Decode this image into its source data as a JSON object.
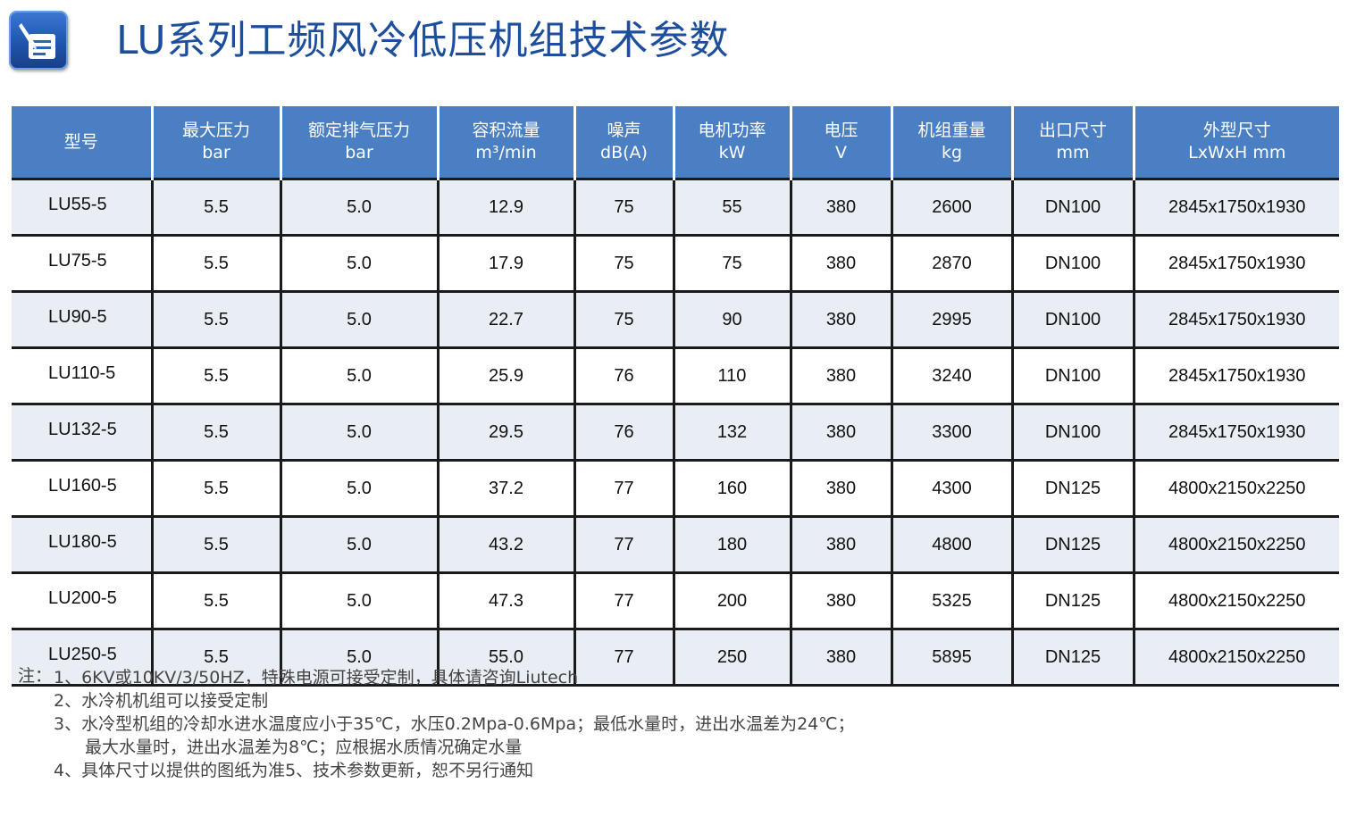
{
  "header": {
    "title": "LU系列工频风冷低压机组技术参数",
    "logo_icon": "document-pen-icon"
  },
  "table": {
    "columns": [
      {
        "name": "型号",
        "unit": ""
      },
      {
        "name": "最大压力",
        "unit": "bar"
      },
      {
        "name": "额定排气压力",
        "unit": "bar"
      },
      {
        "name": "容积流量",
        "unit": "m³/min"
      },
      {
        "name": "噪声",
        "unit": "dB(A)"
      },
      {
        "name": "电机功率",
        "unit": "kW"
      },
      {
        "name": "电压",
        "unit": "V"
      },
      {
        "name": "机组重量",
        "unit": "kg"
      },
      {
        "name": "出口尺寸",
        "unit": "mm"
      },
      {
        "name": "外型尺寸",
        "unit": "LxWxH mm"
      }
    ],
    "rows": [
      [
        "LU55-5",
        "5.5",
        "5.0",
        "12.9",
        "75",
        "55",
        "380",
        "2600",
        "DN100",
        "2845x1750x1930"
      ],
      [
        "LU75-5",
        "5.5",
        "5.0",
        "17.9",
        "75",
        "75",
        "380",
        "2870",
        "DN100",
        "2845x1750x1930"
      ],
      [
        "LU90-5",
        "5.5",
        "5.0",
        "22.7",
        "75",
        "90",
        "380",
        "2995",
        "DN100",
        "2845x1750x1930"
      ],
      [
        "LU110-5",
        "5.5",
        "5.0",
        "25.9",
        "76",
        "110",
        "380",
        "3240",
        "DN100",
        "2845x1750x1930"
      ],
      [
        "LU132-5",
        "5.5",
        "5.0",
        "29.5",
        "76",
        "132",
        "380",
        "3300",
        "DN100",
        "2845x1750x1930"
      ],
      [
        "LU160-5",
        "5.5",
        "5.0",
        "37.2",
        "77",
        "160",
        "380",
        "4300",
        "DN125",
        "4800x2150x2250"
      ],
      [
        "LU180-5",
        "5.5",
        "5.0",
        "43.2",
        "77",
        "180",
        "380",
        "4800",
        "DN125",
        "4800x2150x2250"
      ],
      [
        "LU200-5",
        "5.5",
        "5.0",
        "47.3",
        "77",
        "200",
        "380",
        "5325",
        "DN125",
        "4800x2150x2250"
      ],
      [
        "LU250-5",
        "5.5",
        "5.0",
        "55.0",
        "77",
        "250",
        "380",
        "5895",
        "DN125",
        "4800x2150x2250"
      ]
    ]
  },
  "notes": {
    "label": "注：",
    "lines": [
      "1、6KV或10KV/3/50HZ，特殊电源可接受定制，具体请咨询Liutech",
      "2、水冷机机组可以接受定制",
      "3、水冷型机组的冷却水进水温度应小于35℃，水压0.2Mpa-0.6Mpa；最低水量时，进出水温差为24℃；",
      "最大水量时，进出水温差为8℃；应根据水质情况确定水量",
      "4、具体尺寸以提供的图纸为准5、技术参数更新，恕不另行通知"
    ]
  }
}
